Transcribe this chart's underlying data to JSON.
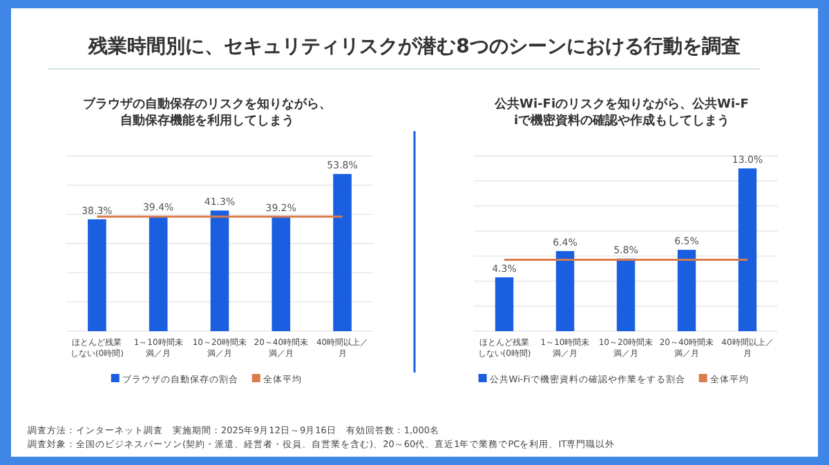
{
  "chart_data": [
    {
      "type": "bar",
      "title": "ブラウザの自動保存のリスクを知りながら、自動保存機能を利用してしまう",
      "annotations": [
        "残業時間別に、セキュリティリスクが潜む8つのシーンにおける行動を調査"
      ],
      "categories": [
        "ほとんど残業しない(0時間)",
        "1～10時間未満／月",
        "10～20時間未満／月",
        "20～40時間未満／月",
        "40時間以上／月"
      ],
      "series": [
        {
          "name": "ブラウザの自動保存の割合",
          "color": "#1a5fe0",
          "values": [
            38.3,
            39.4,
            41.3,
            39.2,
            53.8
          ],
          "value_labels": [
            "38.3%",
            "39.4%",
            "41.3%",
            "39.2%",
            "53.8%"
          ]
        },
        {
          "name": "全体平均",
          "type": "line",
          "color": "#d97b4a",
          "values": [
            39.2,
            39.2,
            39.2,
            39.2,
            39.2
          ]
        }
      ],
      "ylim": [
        0,
        60
      ],
      "yticks": [
        {
          "value": 0,
          "label": null
        },
        {
          "value": 10,
          "label": null
        },
        {
          "value": 20,
          "label": null
        },
        {
          "value": 30,
          "label": null
        },
        {
          "value": 40,
          "label": null
        },
        {
          "value": 50,
          "label": null
        },
        {
          "value": 60,
          "label": null
        }
      ],
      "grid": "y",
      "legend": "bottom"
    },
    {
      "type": "bar",
      "title": "公共Wi-Fiのリスクを知りながら、公共Wi-Fiで機密資料の確認や作成もしてしまう",
      "annotations": [
        "調査方法：インターネット調査　実施期間：2025年9月12日～9月16日　有効回答数：1,000名",
        "調査対象：全国のビジネスパーソン(契約・派遣、経営者・役員、自営業を含む)、20～60代、直近1年で業務でPCを利用、IT専門職以外"
      ],
      "categories": [
        "ほとんど残業しない(0時間)",
        "1～10時間未満／月",
        "10～20時間未満／月",
        "20～40時間未満／月",
        "40時間以上／月"
      ],
      "series": [
        {
          "name": "公共Wi-Fiで機密資料の確認や作業をする割合",
          "color": "#1a5fe0",
          "values": [
            4.3,
            6.4,
            5.8,
            6.5,
            13.0
          ],
          "value_labels": [
            "4.3%",
            "6.4%",
            "5.8%",
            "6.5%",
            "13.0%"
          ]
        },
        {
          "name": "全体平均",
          "type": "line",
          "color": "#d97b4a",
          "values": [
            5.7,
            5.7,
            5.7,
            5.7,
            5.7
          ]
        }
      ],
      "ylim": [
        0,
        14
      ],
      "yticks": [
        {
          "value": 0,
          "label": null
        },
        {
          "value": 2,
          "label": null
        },
        {
          "value": 4,
          "label": null
        },
        {
          "value": 6,
          "label": null
        },
        {
          "value": 8,
          "label": null
        },
        {
          "value": 10,
          "label": null
        },
        {
          "value": 12,
          "label": null
        },
        {
          "value": 14,
          "label": null
        }
      ],
      "grid": "y",
      "legend": "bottom"
    }
  ]
}
